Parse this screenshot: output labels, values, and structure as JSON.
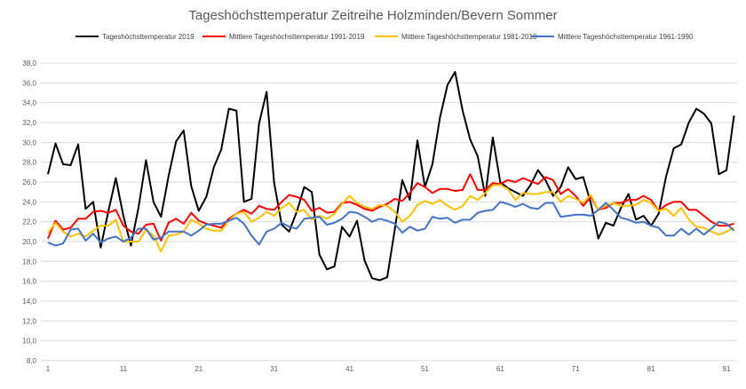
{
  "chart_data": {
    "type": "line",
    "title": "Tageshöchsttemperatur Zeitreihe Holzminden/Bevern Sommer",
    "xlabel": "",
    "ylabel": "",
    "ylim": [
      8,
      38
    ],
    "xlim": [
      1,
      92
    ],
    "grid": true,
    "legend_position": "top",
    "y_ticks": [
      "8,0",
      "10,0",
      "12,0",
      "14,0",
      "16,0",
      "18,0",
      "20,0",
      "22,0",
      "24,0",
      "26,0",
      "28,0",
      "30,0",
      "32,0",
      "34,0",
      "36,0",
      "38,0"
    ],
    "x_ticks": [
      "1",
      "11",
      "21",
      "31",
      "41",
      "51",
      "61",
      "71",
      "81",
      "91"
    ],
    "series": [
      {
        "name": "Tageshöchsttemperatur 2019",
        "color": "#000000",
        "values": [
          26.8,
          29.9,
          27.8,
          27.7,
          29.8,
          23.3,
          24.0,
          19.4,
          23.0,
          26.4,
          22.6,
          19.6,
          23.4,
          28.2,
          24.0,
          22.5,
          26.6,
          30.1,
          31.2,
          25.6,
          23.1,
          24.5,
          27.5,
          29.3,
          33.4,
          33.2,
          24.0,
          24.3,
          31.9,
          35.1,
          25.9,
          21.7,
          21.0,
          23.0,
          25.5,
          25.0,
          18.7,
          17.2,
          17.5,
          21.5,
          20.5,
          22.1,
          18.1,
          16.3,
          16.1,
          16.4,
          21.2,
          26.2,
          24.2,
          30.2,
          25.5,
          27.8,
          32.5,
          35.8,
          37.1,
          33.2,
          30.3,
          28.6,
          24.6,
          30.5,
          26.0,
          25.4,
          25.0,
          24.6,
          25.7,
          27.2,
          26.2,
          24.6,
          25.5,
          27.5,
          26.3,
          26.5,
          23.9,
          20.3,
          21.9,
          21.6,
          23.4,
          24.8,
          22.2,
          22.6,
          21.6,
          22.8,
          26.6,
          29.4,
          29.8,
          32.0,
          33.4,
          32.9,
          31.9,
          26.8,
          27.2,
          32.7
        ]
      },
      {
        "name": "Mittlere Tageshöchsttemperatur 1991-2019",
        "color": "#ff0000",
        "values": [
          20.3,
          22.1,
          21.2,
          21.4,
          22.3,
          22.3,
          23.0,
          23.1,
          22.9,
          23.2,
          21.6,
          21.0,
          20.8,
          21.7,
          21.8,
          20.1,
          21.9,
          22.3,
          21.8,
          22.9,
          22.1,
          21.8,
          21.6,
          21.4,
          22.3,
          22.8,
          23.2,
          22.8,
          23.6,
          23.3,
          23.2,
          24.0,
          24.7,
          24.5,
          24.2,
          23.1,
          23.4,
          22.9,
          23.0,
          23.9,
          24.0,
          23.7,
          23.3,
          23.1,
          23.5,
          23.8,
          24.3,
          24.1,
          24.9,
          25.9,
          25.5,
          24.9,
          25.3,
          25.3,
          25.1,
          25.2,
          26.8,
          25.2,
          25.2,
          25.9,
          25.8,
          26.2,
          26.0,
          26.4,
          26.1,
          25.8,
          26.5,
          26.2,
          24.8,
          25.3,
          24.6,
          23.6,
          24.5,
          23.2,
          23.4,
          23.9,
          23.9,
          24.2,
          24.2,
          24.6,
          24.2,
          23.1,
          23.7,
          24.0,
          24.0,
          23.2,
          23.2,
          22.6,
          22.0,
          21.6,
          21.6,
          21.8
        ]
      },
      {
        "name": "Mittlere Tageshöchsttemperatur 1981-2010",
        "color": "#ffc000",
        "values": [
          20.9,
          21.9,
          21.0,
          20.5,
          20.8,
          20.5,
          21.1,
          21.6,
          21.6,
          22.2,
          20.0,
          20.0,
          20.0,
          21.2,
          20.6,
          19.0,
          20.6,
          20.7,
          21.0,
          22.2,
          21.8,
          21.3,
          21.1,
          21.1,
          22.1,
          22.8,
          23.0,
          22.0,
          22.4,
          23.0,
          22.6,
          23.4,
          23.9,
          23.0,
          23.2,
          22.2,
          22.6,
          22.3,
          22.8,
          23.8,
          24.6,
          23.9,
          23.5,
          23.3,
          23.7,
          23.6,
          23.0,
          22.0,
          22.6,
          23.7,
          24.1,
          23.8,
          24.2,
          23.6,
          23.2,
          23.6,
          24.6,
          24.2,
          24.9,
          25.7,
          25.7,
          25.3,
          24.2,
          24.9,
          24.8,
          24.8,
          25.0,
          25.0,
          24.0,
          24.6,
          24.3,
          23.9,
          24.7,
          23.2,
          23.6,
          23.9,
          23.6,
          23.6,
          23.7,
          24.2,
          23.9,
          23.1,
          23.3,
          22.6,
          23.4,
          22.2,
          21.5,
          21.4,
          21.0,
          20.7,
          21.0,
          21.4
        ]
      },
      {
        "name": "Mittlere Tageshöchsttemperatur 1961-1990",
        "color": "#4472c4",
        "values": [
          19.9,
          19.6,
          19.8,
          21.2,
          21.3,
          20.1,
          20.8,
          19.9,
          20.3,
          20.5,
          20.0,
          20.4,
          21.3,
          21.3,
          20.2,
          20.4,
          21.0,
          21.0,
          21.0,
          20.6,
          21.1,
          21.7,
          21.8,
          21.8,
          22.1,
          22.4,
          21.8,
          20.6,
          19.7,
          21.0,
          21.3,
          21.9,
          21.5,
          21.3,
          22.3,
          22.4,
          22.5,
          21.7,
          21.9,
          22.3,
          23.0,
          22.9,
          22.5,
          22.0,
          22.3,
          22.1,
          21.8,
          20.9,
          21.5,
          21.1,
          21.3,
          22.5,
          22.3,
          22.4,
          21.9,
          22.2,
          22.2,
          22.9,
          23.1,
          23.2,
          24.0,
          23.8,
          23.5,
          23.8,
          23.4,
          23.3,
          23.9,
          23.9,
          22.5,
          22.6,
          22.7,
          22.7,
          22.6,
          23.2,
          23.9,
          23.2,
          22.4,
          22.2,
          21.9,
          22.0,
          21.6,
          21.4,
          20.6,
          20.6,
          21.3,
          20.7,
          21.3,
          20.7,
          21.3,
          22.0,
          21.8,
          21.1
        ]
      }
    ]
  }
}
